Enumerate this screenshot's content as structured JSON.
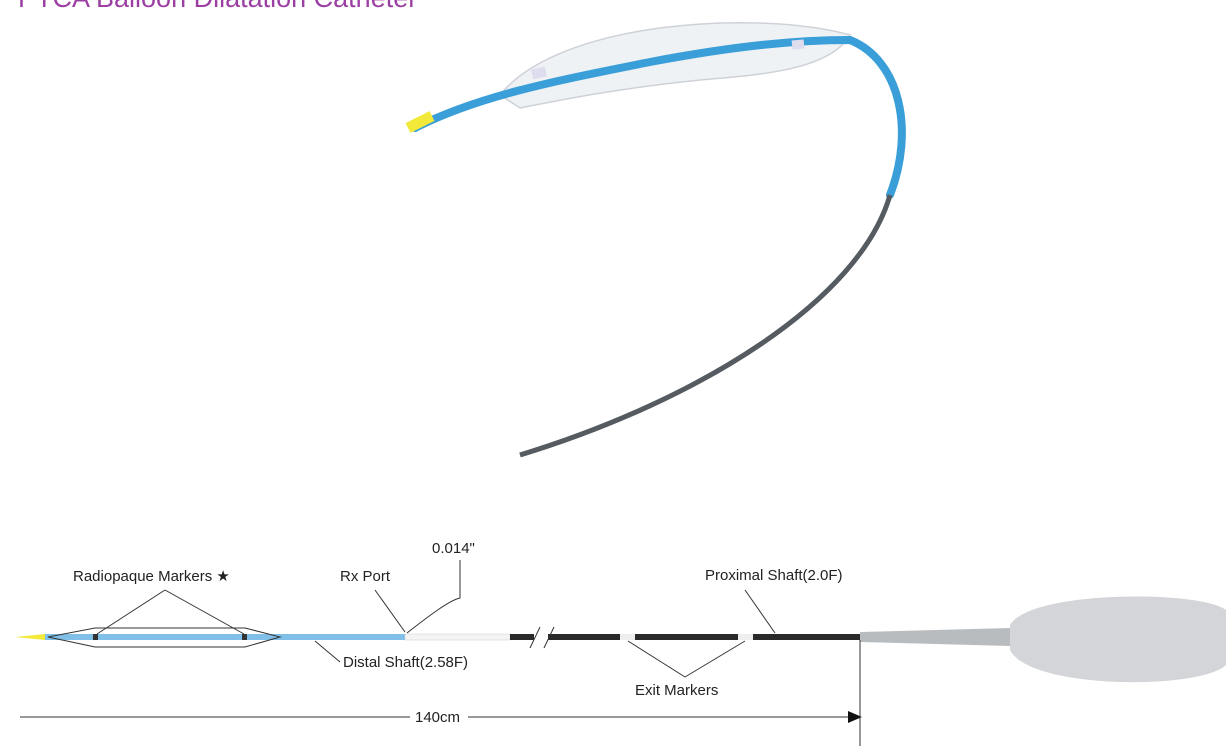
{
  "header": {
    "title": "PTCA Balloon Dilatation Catheter"
  },
  "labels": {
    "guidewire": "0.014\"",
    "radiopaque_markers": "Radiopaque Markers ★",
    "rx_port": "Rx Port",
    "proximal_shaft": "Proximal Shaft(2.0F)",
    "distal_shaft": "Distal Shaft(2.58F)",
    "exit_markers": "Exit Markers",
    "length": "140cm"
  }
}
